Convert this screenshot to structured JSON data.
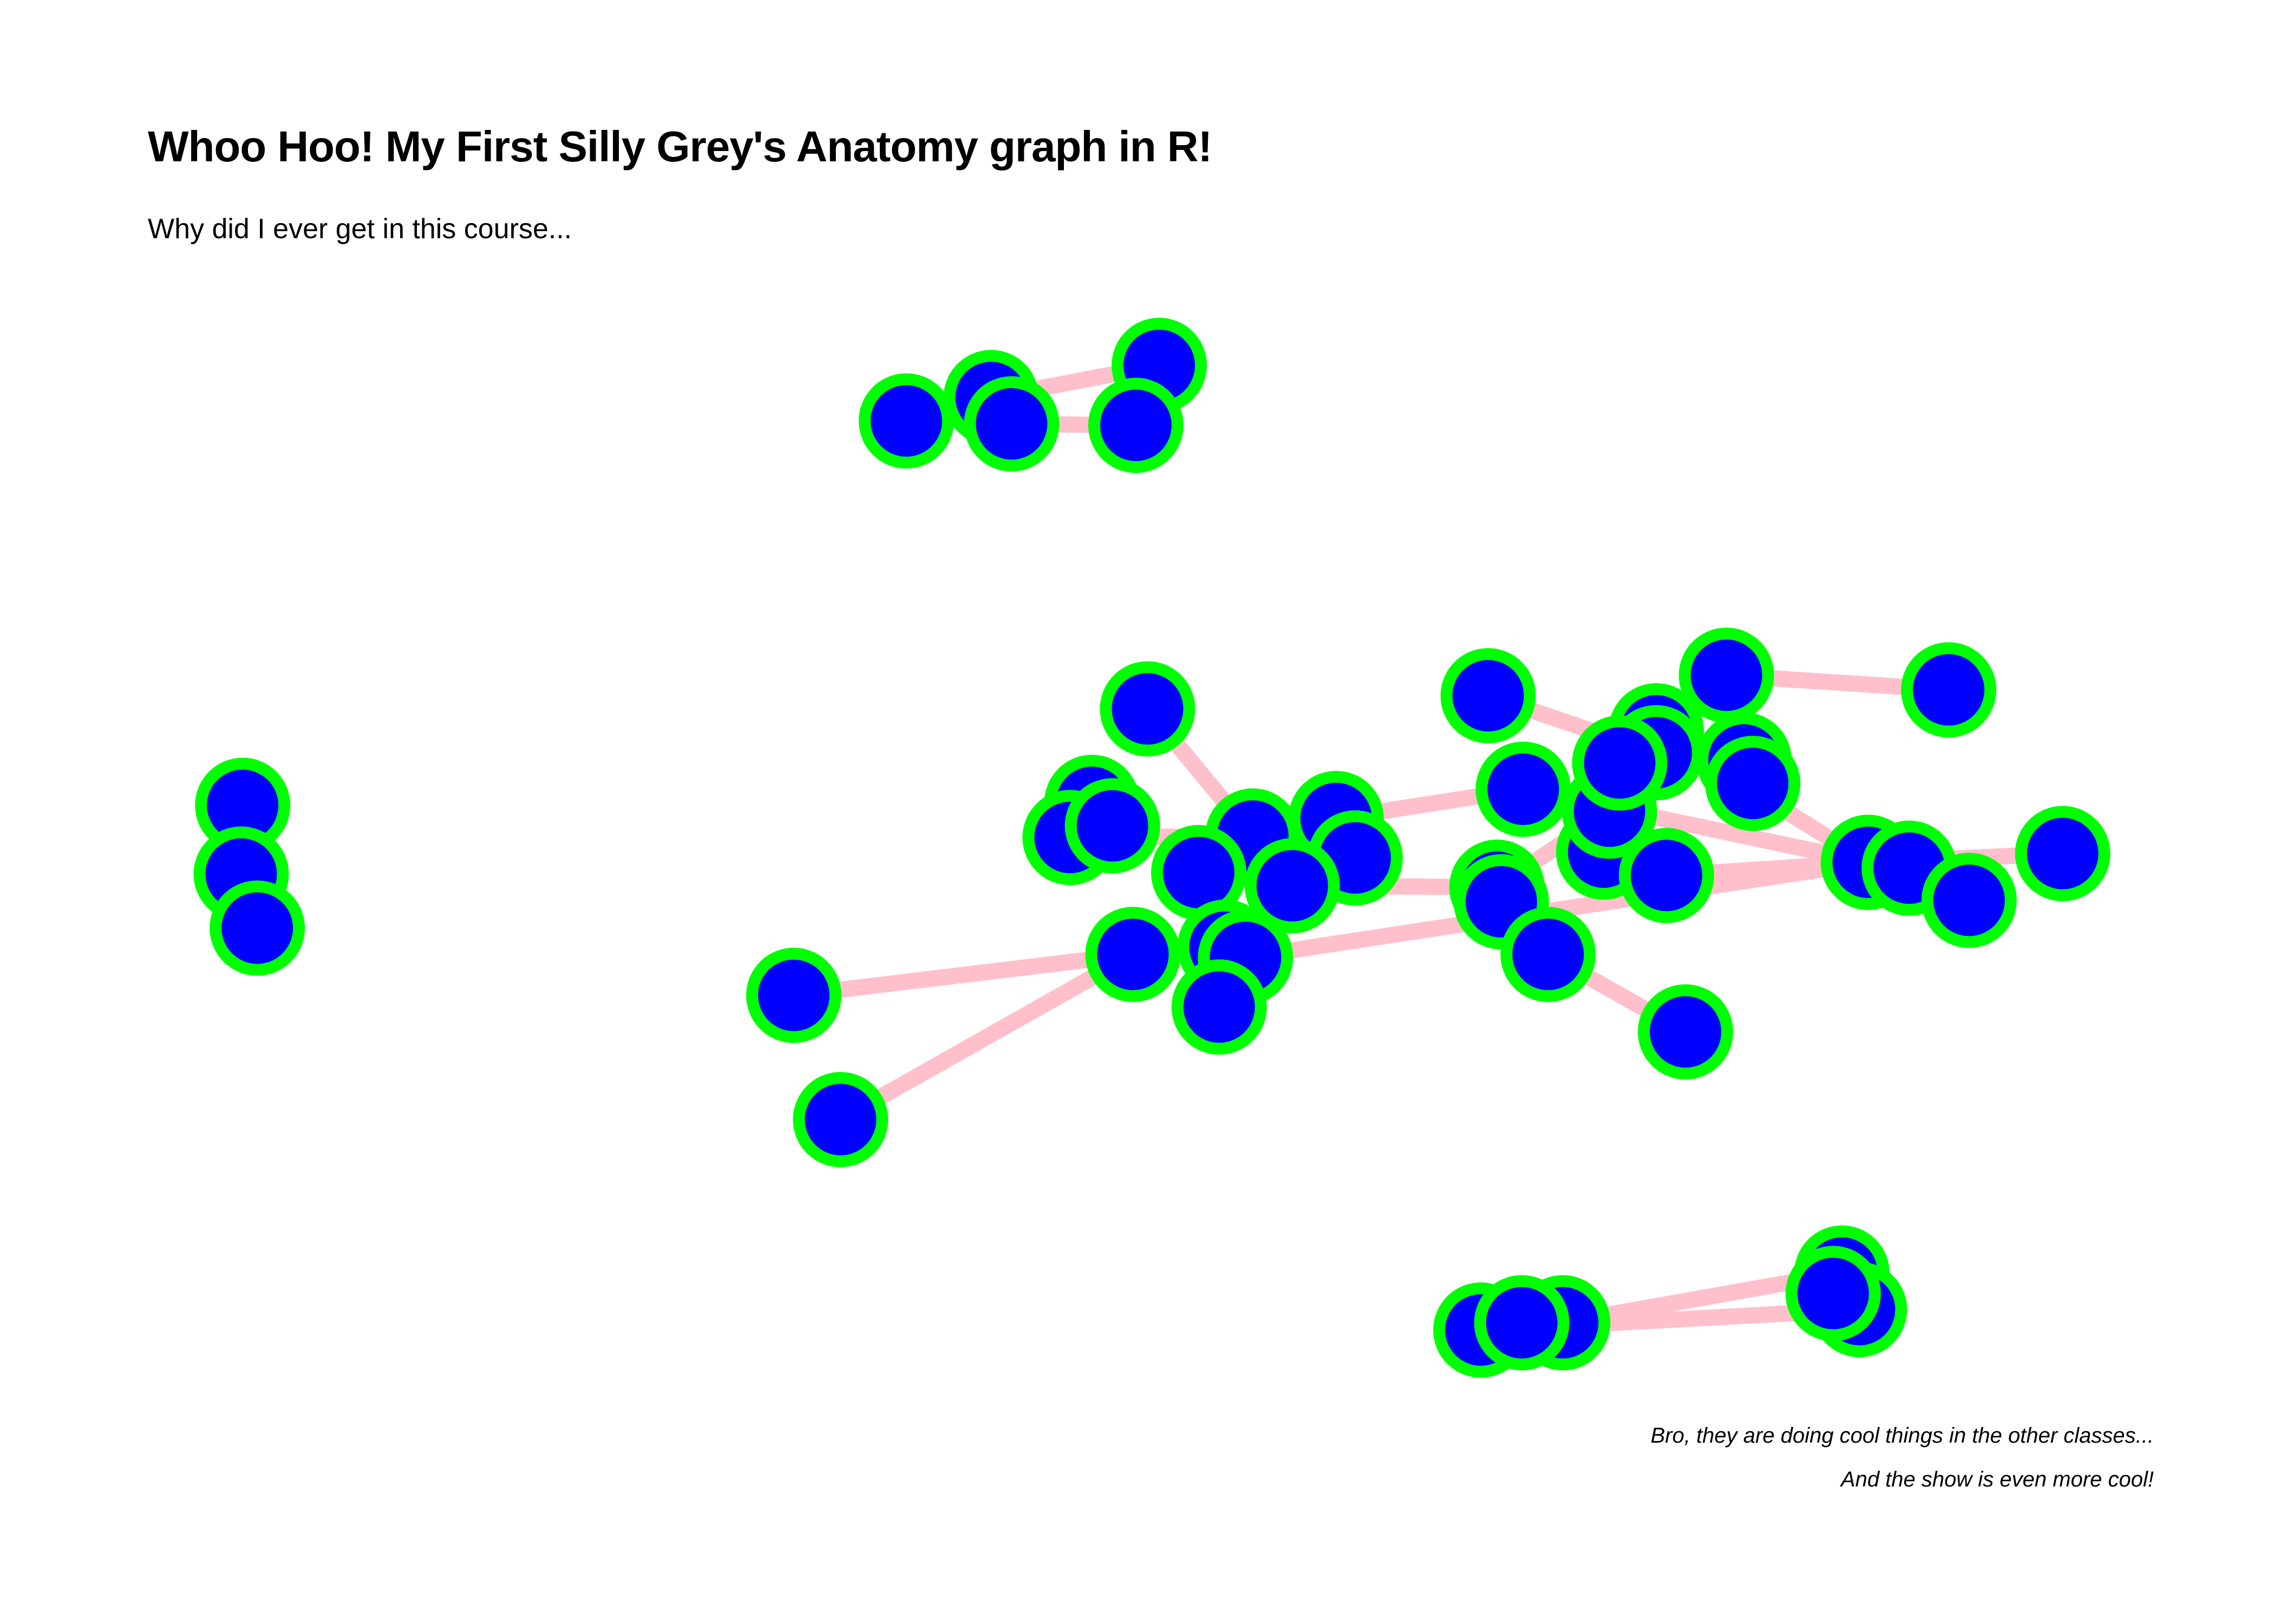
{
  "title": "Whoo Hoo! My First Silly Grey's Anatomy graph in R!",
  "subtitle": "Why did I ever get in this course...",
  "caption": {
    "line1": "Bro, they are doing cool things in the other classes...",
    "line2": "And the show is even more cool!"
  },
  "colors": {
    "node_fill": "#0000ff",
    "node_border": "#00ff00",
    "edge": "#ffc0cb",
    "background": "#ffffff"
  }
}
